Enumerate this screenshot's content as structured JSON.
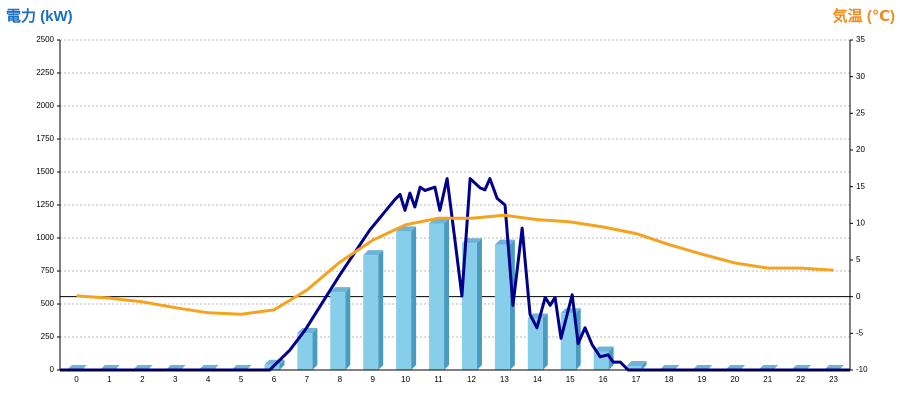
{
  "chart_data": {
    "type": "bar",
    "y_label": "電力 (kW)",
    "y2_label": "気温 (℃)",
    "categories": [
      "0",
      "1",
      "2",
      "3",
      "4",
      "5",
      "6",
      "7",
      "8",
      "9",
      "10",
      "11",
      "12",
      "13",
      "14",
      "15",
      "16",
      "17",
      "18",
      "19",
      "20",
      "21",
      "22",
      "23"
    ],
    "xlim": [
      -0.5,
      23.5
    ],
    "ylim": [
      0,
      2500
    ],
    "yticks": [
      0,
      250,
      500,
      750,
      1000,
      1250,
      1500,
      1750,
      2000,
      2250,
      2500
    ],
    "y2lim": [
      -10,
      35
    ],
    "y2ticks": [
      -10,
      -5,
      0,
      5,
      10,
      15,
      20,
      25,
      30,
      35
    ],
    "grid": true,
    "series": [
      {
        "type": "bar",
        "color": "#87ceeb",
        "values": [
          0,
          0,
          0,
          0,
          0,
          0,
          40,
          280,
          590,
          870,
          1050,
          1110,
          960,
          950,
          390,
          430,
          140,
          30,
          0,
          0,
          0,
          0,
          0,
          0
        ]
      },
      {
        "type": "line",
        "color": "#00008b",
        "x": [
          -0.5,
          5.87,
          6.48,
          6.94,
          8.0,
          8.91,
          9.67,
          9.83,
          9.98,
          10.13,
          10.28,
          10.44,
          10.59,
          10.89,
          11.04,
          11.26,
          11.5,
          11.71,
          11.96,
          12.26,
          12.41,
          12.56,
          12.78,
          13.02,
          13.26,
          13.54,
          13.78,
          13.99,
          14.24,
          14.39,
          14.54,
          14.72,
          15.06,
          15.24,
          15.45,
          15.67,
          15.91,
          16.15,
          16.31,
          16.52,
          16.76,
          23.5
        ],
        "values": [
          0,
          0,
          150,
          300,
          720,
          1060,
          1290,
          1330,
          1210,
          1340,
          1235,
          1385,
          1360,
          1385,
          1210,
          1450,
          980,
          560,
          1450,
          1380,
          1365,
          1450,
          1300,
          1250,
          490,
          1075,
          420,
          320,
          550,
          490,
          550,
          240,
          570,
          200,
          320,
          190,
          100,
          115,
          60,
          60,
          0,
          0
        ]
      },
      {
        "type": "line",
        "color": "#f5a31e",
        "axis": "y2",
        "values": [
          0.1,
          -0.2,
          -0.7,
          -1.5,
          -2.2,
          -2.4,
          -1.8,
          0.9,
          4.7,
          7.7,
          9.8,
          10.7,
          10.7,
          11.1,
          10.5,
          10.2,
          9.5,
          8.6,
          7.1,
          5.8,
          4.6,
          3.9,
          3.9,
          3.6
        ]
      }
    ]
  }
}
